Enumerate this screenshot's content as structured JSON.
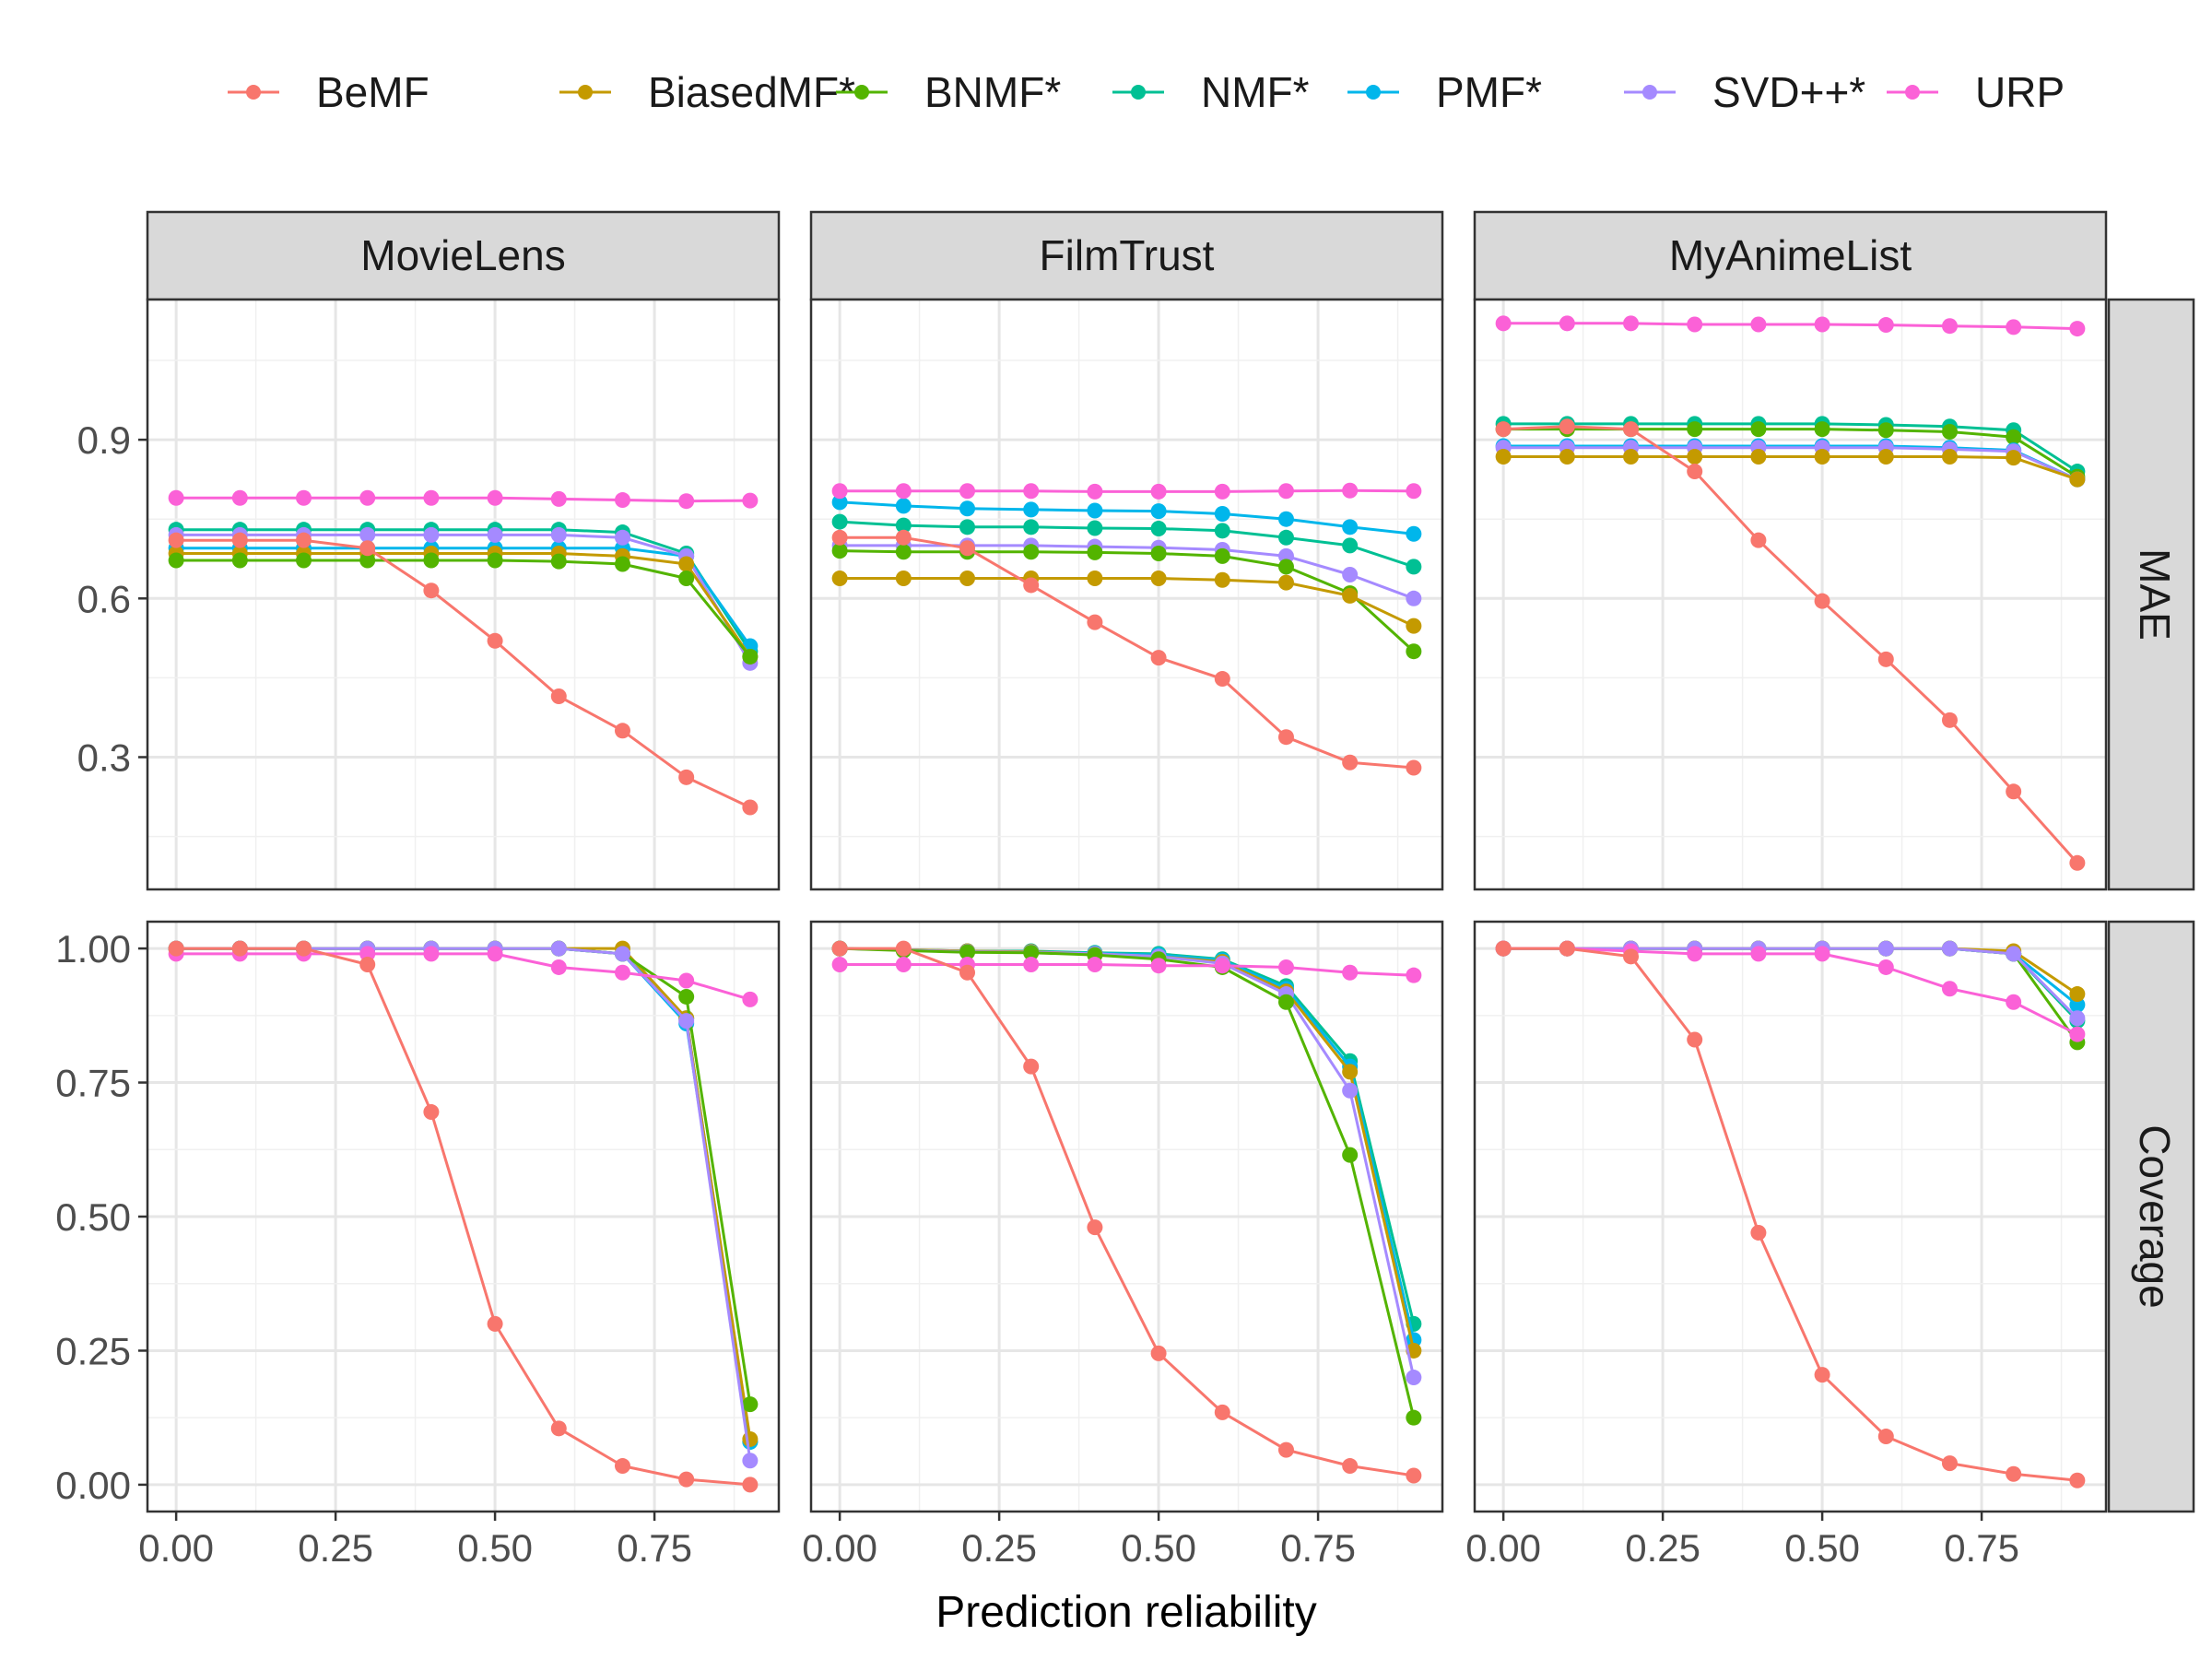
{
  "chart_data": {
    "type": "line",
    "layout": "facet-grid",
    "xlabel": "Prediction reliability",
    "x": [
      0,
      0.1,
      0.2,
      0.3,
      0.4,
      0.5,
      0.6,
      0.7,
      0.8,
      0.9
    ],
    "x_ticks": [
      "0.00",
      "0.25",
      "0.50",
      "0.75"
    ],
    "x_tick_values": [
      0,
      0.25,
      0.5,
      0.75
    ],
    "xlim": [
      -0.045,
      0.945
    ],
    "legend": {
      "position": "top",
      "entries": [
        "BeMF",
        "BiasedMF*",
        "BNMF*",
        "NMF*",
        "PMF*",
        "SVD++*",
        "URP"
      ]
    },
    "colors": {
      "BeMF": "#F8766D",
      "BiasedMF*": "#C49A00",
      "BNMF*": "#53B400",
      "NMF*": "#00C094",
      "PMF*": "#00B6EB",
      "SVD++*": "#A58AFF",
      "URP": "#FB61D7"
    },
    "columns": [
      "MovieLens",
      "FilmTrust",
      "MyAnimeList"
    ],
    "rows": [
      {
        "metric": "MAE",
        "ylim": [
          0.05,
          1.165
        ],
        "y_ticks": [
          "0.3",
          "0.6",
          "0.9"
        ],
        "y_tick_values": [
          0.3,
          0.6,
          0.9
        ]
      },
      {
        "metric": "Coverage",
        "ylim": [
          -0.05,
          1.05
        ],
        "y_ticks": [
          "0.00",
          "0.25",
          "0.50",
          "0.75",
          "1.00"
        ],
        "y_tick_values": [
          0,
          0.25,
          0.5,
          0.75,
          1.0
        ]
      }
    ],
    "panels": [
      {
        "dataset": "MovieLens",
        "metric": "MAE",
        "series": [
          {
            "name": "NMF*",
            "values": [
              0.73,
              0.73,
              0.73,
              0.73,
              0.73,
              0.73,
              0.73,
              0.725,
              0.685,
              0.5
            ]
          },
          {
            "name": "PMF*",
            "values": [
              0.695,
              0.695,
              0.695,
              0.695,
              0.695,
              0.695,
              0.695,
              0.695,
              0.68,
              0.51
            ]
          },
          {
            "name": "SVD++*",
            "values": [
              0.72,
              0.72,
              0.72,
              0.72,
              0.72,
              0.72,
              0.72,
              0.715,
              0.68,
              0.478
            ]
          },
          {
            "name": "BiasedMF*",
            "values": [
              0.685,
              0.685,
              0.685,
              0.685,
              0.685,
              0.685,
              0.685,
              0.68,
              0.665,
              0.49
            ]
          },
          {
            "name": "BNMF*",
            "values": [
              0.672,
              0.672,
              0.672,
              0.672,
              0.672,
              0.672,
              0.67,
              0.665,
              0.638,
              0.49
            ]
          },
          {
            "name": "URP",
            "values": [
              0.79,
              0.79,
              0.79,
              0.79,
              0.79,
              0.79,
              0.788,
              0.786,
              0.784,
              0.785
            ]
          },
          {
            "name": "BeMF",
            "values": [
              0.71,
              0.71,
              0.71,
              0.695,
              0.615,
              0.52,
              0.415,
              0.35,
              0.262,
              0.205
            ]
          }
        ]
      },
      {
        "dataset": "FilmTrust",
        "metric": "MAE",
        "series": [
          {
            "name": "PMF*",
            "values": [
              0.782,
              0.775,
              0.77,
              0.768,
              0.766,
              0.765,
              0.76,
              0.75,
              0.735,
              0.722
            ]
          },
          {
            "name": "NMF*",
            "values": [
              0.745,
              0.738,
              0.735,
              0.735,
              0.733,
              0.732,
              0.728,
              0.715,
              0.7,
              0.66
            ]
          },
          {
            "name": "SVD++*",
            "values": [
              0.7,
              0.7,
              0.7,
              0.7,
              0.698,
              0.696,
              0.692,
              0.68,
              0.645,
              0.6
            ]
          },
          {
            "name": "BNMF*",
            "values": [
              0.69,
              0.688,
              0.688,
              0.688,
              0.687,
              0.685,
              0.68,
              0.66,
              0.61,
              0.5
            ]
          },
          {
            "name": "BiasedMF*",
            "values": [
              0.638,
              0.638,
              0.638,
              0.638,
              0.638,
              0.638,
              0.635,
              0.63,
              0.605,
              0.548
            ]
          },
          {
            "name": "URP",
            "values": [
              0.803,
              0.803,
              0.803,
              0.803,
              0.802,
              0.802,
              0.802,
              0.803,
              0.804,
              0.803
            ]
          },
          {
            "name": "BeMF",
            "values": [
              0.715,
              0.715,
              0.695,
              0.625,
              0.555,
              0.488,
              0.448,
              0.338,
              0.29,
              0.28
            ]
          }
        ]
      },
      {
        "dataset": "MyAnimeList",
        "metric": "MAE",
        "series": [
          {
            "name": "NMF*",
            "values": [
              0.93,
              0.93,
              0.93,
              0.93,
              0.93,
              0.93,
              0.928,
              0.925,
              0.918,
              0.84
            ]
          },
          {
            "name": "BNMF*",
            "values": [
              0.92,
              0.92,
              0.92,
              0.92,
              0.92,
              0.92,
              0.918,
              0.915,
              0.905,
              0.83
            ]
          },
          {
            "name": "PMF*",
            "values": [
              0.888,
              0.888,
              0.888,
              0.888,
              0.888,
              0.888,
              0.888,
              0.885,
              0.88,
              0.825
            ]
          },
          {
            "name": "SVD++*",
            "values": [
              0.885,
              0.885,
              0.885,
              0.885,
              0.885,
              0.885,
              0.885,
              0.882,
              0.878,
              0.825
            ]
          },
          {
            "name": "BiasedMF*",
            "values": [
              0.868,
              0.868,
              0.868,
              0.868,
              0.868,
              0.868,
              0.868,
              0.868,
              0.866,
              0.825
            ]
          },
          {
            "name": "URP",
            "values": [
              1.12,
              1.12,
              1.12,
              1.118,
              1.118,
              1.118,
              1.117,
              1.115,
              1.113,
              1.11
            ]
          },
          {
            "name": "BeMF",
            "values": [
              0.92,
              0.925,
              0.92,
              0.84,
              0.71,
              0.595,
              0.485,
              0.37,
              0.235,
              0.1
            ]
          }
        ]
      },
      {
        "dataset": "MovieLens",
        "metric": "Coverage",
        "series": [
          {
            "name": "NMF*",
            "values": [
              1.0,
              1.0,
              1.0,
              1.0,
              1.0,
              1.0,
              1.0,
              0.99,
              0.87,
              0.08
            ]
          },
          {
            "name": "PMF*",
            "values": [
              1.0,
              1.0,
              1.0,
              1.0,
              1.0,
              1.0,
              1.0,
              0.99,
              0.86,
              0.08
            ]
          },
          {
            "name": "BiasedMF*",
            "values": [
              1.0,
              1.0,
              1.0,
              1.0,
              1.0,
              1.0,
              1.0,
              1.0,
              0.87,
              0.085
            ]
          },
          {
            "name": "BNMF*",
            "values": [
              1.0,
              1.0,
              1.0,
              1.0,
              1.0,
              1.0,
              1.0,
              0.99,
              0.91,
              0.15
            ]
          },
          {
            "name": "SVD++*",
            "values": [
              1.0,
              1.0,
              1.0,
              1.0,
              1.0,
              1.0,
              1.0,
              0.99,
              0.865,
              0.045
            ]
          },
          {
            "name": "URP",
            "values": [
              0.99,
              0.99,
              0.99,
              0.99,
              0.99,
              0.99,
              0.965,
              0.955,
              0.94,
              0.905
            ]
          },
          {
            "name": "BeMF",
            "values": [
              1.0,
              1.0,
              1.0,
              0.97,
              0.695,
              0.3,
              0.105,
              0.035,
              0.01,
              0.0
            ]
          }
        ]
      },
      {
        "dataset": "FilmTrust",
        "metric": "Coverage",
        "series": [
          {
            "name": "NMF*",
            "values": [
              1.0,
              0.998,
              0.995,
              0.995,
              0.992,
              0.99,
              0.98,
              0.93,
              0.79,
              0.3
            ]
          },
          {
            "name": "PMF*",
            "values": [
              1.0,
              0.997,
              0.995,
              0.994,
              0.991,
              0.988,
              0.978,
              0.925,
              0.78,
              0.27
            ]
          },
          {
            "name": "BiasedMF*",
            "values": [
              1.0,
              0.998,
              0.995,
              0.994,
              0.99,
              0.985,
              0.975,
              0.92,
              0.77,
              0.25
            ]
          },
          {
            "name": "SVD++*",
            "values": [
              1.0,
              0.997,
              0.994,
              0.993,
              0.99,
              0.985,
              0.972,
              0.915,
              0.735,
              0.2
            ]
          },
          {
            "name": "BNMF*",
            "values": [
              1.0,
              0.996,
              0.993,
              0.992,
              0.988,
              0.98,
              0.965,
              0.9,
              0.615,
              0.125
            ]
          },
          {
            "name": "URP",
            "values": [
              0.97,
              0.97,
              0.97,
              0.97,
              0.97,
              0.968,
              0.968,
              0.965,
              0.955,
              0.95
            ]
          },
          {
            "name": "BeMF",
            "values": [
              1.0,
              1.0,
              0.955,
              0.78,
              0.48,
              0.245,
              0.135,
              0.065,
              0.035,
              0.017
            ]
          }
        ]
      },
      {
        "dataset": "MyAnimeList",
        "metric": "Coverage",
        "series": [
          {
            "name": "NMF*",
            "values": [
              1.0,
              1.0,
              1.0,
              1.0,
              1.0,
              1.0,
              1.0,
              1.0,
              0.99,
              0.865
            ]
          },
          {
            "name": "PMF*",
            "values": [
              1.0,
              1.0,
              1.0,
              1.0,
              1.0,
              1.0,
              1.0,
              1.0,
              0.99,
              0.895
            ]
          },
          {
            "name": "BNMF*",
            "values": [
              1.0,
              1.0,
              1.0,
              1.0,
              1.0,
              1.0,
              1.0,
              1.0,
              0.99,
              0.825
            ]
          },
          {
            "name": "BiasedMF*",
            "values": [
              1.0,
              1.0,
              1.0,
              1.0,
              1.0,
              1.0,
              1.0,
              1.0,
              0.995,
              0.915
            ]
          },
          {
            "name": "SVD++*",
            "values": [
              1.0,
              1.0,
              1.0,
              1.0,
              1.0,
              1.0,
              1.0,
              1.0,
              0.99,
              0.87
            ]
          },
          {
            "name": "URP",
            "values": [
              1.0,
              1.0,
              0.995,
              0.99,
              0.99,
              0.99,
              0.965,
              0.925,
              0.9,
              0.84
            ]
          },
          {
            "name": "BeMF",
            "values": [
              1.0,
              1.0,
              0.985,
              0.83,
              0.47,
              0.205,
              0.09,
              0.04,
              0.02,
              0.008
            ]
          }
        ]
      }
    ]
  }
}
